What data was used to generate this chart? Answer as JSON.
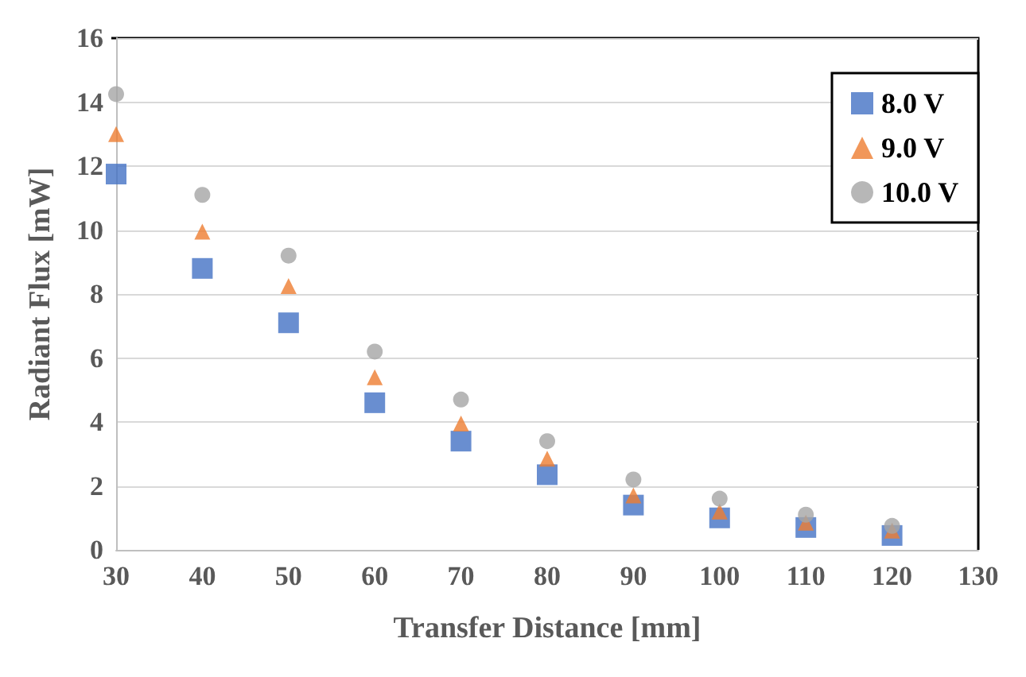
{
  "chart_data": {
    "type": "scatter",
    "xlabel": "Transfer Distance [mm]",
    "ylabel": "Radiant Flux [mW]",
    "x": [
      30,
      40,
      50,
      60,
      70,
      80,
      90,
      100,
      110,
      120
    ],
    "series": [
      {
        "name": "8.0 V",
        "color": "#4472c4",
        "marker": "square",
        "values": [
          11.75,
          8.8,
          7.1,
          4.6,
          3.4,
          2.35,
          1.4,
          1.0,
          0.7,
          0.45
        ]
      },
      {
        "name": "9.0 V",
        "color": "#ed7d31",
        "marker": "triangle",
        "values": [
          13.0,
          9.95,
          8.25,
          5.4,
          3.95,
          2.85,
          1.7,
          1.2,
          0.85,
          0.6
        ]
      },
      {
        "name": "10.0 V",
        "color": "#a5a5a5",
        "marker": "circle",
        "values": [
          14.25,
          11.1,
          9.2,
          6.2,
          4.7,
          3.4,
          2.2,
          1.6,
          1.1,
          0.75
        ]
      }
    ],
    "xlim": [
      30,
      130
    ],
    "xticks": [
      30,
      40,
      50,
      60,
      70,
      80,
      90,
      100,
      110,
      120,
      130
    ],
    "ylim": [
      0,
      16
    ],
    "yticks": [
      0,
      2,
      4,
      6,
      8,
      10,
      12,
      14,
      16
    ],
    "grid": "y",
    "legend": "top right"
  }
}
